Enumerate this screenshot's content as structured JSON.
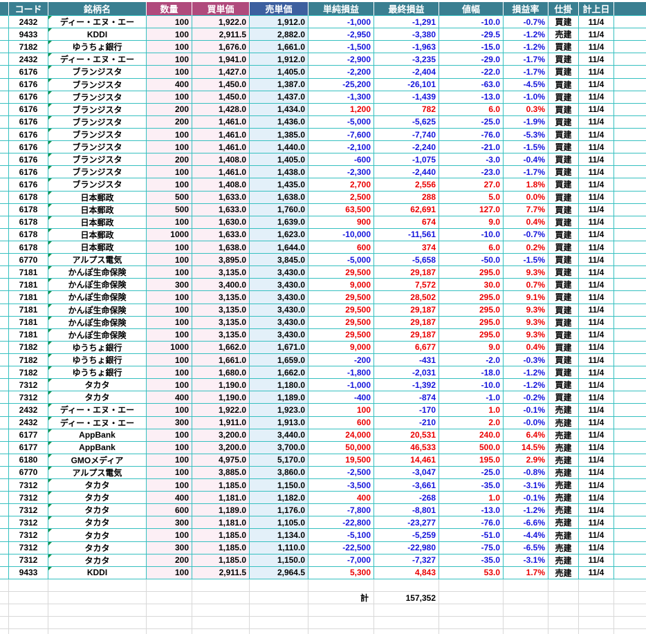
{
  "table": {
    "columns": [
      {
        "key": "spacer-left",
        "label": "",
        "header_color": "header_teal"
      },
      {
        "key": "code",
        "label": "コード",
        "header_color": "header_teal"
      },
      {
        "key": "name",
        "label": "銘柄名",
        "header_color": "header_teal"
      },
      {
        "key": "qty",
        "label": "数量",
        "header_color": "header_magenta",
        "fill": "fill_pink"
      },
      {
        "key": "buy-price",
        "label": "買単価",
        "header_color": "header_magenta",
        "fill": "fill_pink"
      },
      {
        "key": "sell-price",
        "label": "売単価",
        "header_color": "header_blue",
        "fill": "fill_blue"
      },
      {
        "key": "simple-pl",
        "label": "単純損益",
        "header_color": "header_teal",
        "signed": true
      },
      {
        "key": "final-pl",
        "label": "最終損益",
        "header_color": "header_teal",
        "signed": true
      },
      {
        "key": "price-range",
        "label": "値幅",
        "header_color": "header_teal",
        "signed": true
      },
      {
        "key": "pl-rate",
        "label": "損益率",
        "header_color": "header_teal",
        "signed": true
      },
      {
        "key": "position",
        "label": "仕掛",
        "header_color": "header_teal"
      },
      {
        "key": "entry-date",
        "label": "計上日",
        "header_color": "header_teal"
      },
      {
        "key": "spacer-right",
        "label": "",
        "header_color": "header_teal"
      }
    ],
    "rows": [
      [
        "2432",
        "ディー・エヌ・エー",
        "100",
        "1,922.0",
        "1,912.0",
        "-1,000",
        "-1,291",
        "-10.0",
        "-0.7%",
        "買建",
        "11/4"
      ],
      [
        "9433",
        "KDDI",
        "100",
        "2,911.5",
        "2,882.0",
        "-2,950",
        "-3,380",
        "-29.5",
        "-1.2%",
        "売建",
        "11/4"
      ],
      [
        "7182",
        "ゆうちょ銀行",
        "100",
        "1,676.0",
        "1,661.0",
        "-1,500",
        "-1,963",
        "-15.0",
        "-1.2%",
        "買建",
        "11/4"
      ],
      [
        "2432",
        "ディー・エヌ・エー",
        "100",
        "1,941.0",
        "1,912.0",
        "-2,900",
        "-3,235",
        "-29.0",
        "-1.7%",
        "買建",
        "11/4"
      ],
      [
        "6176",
        "ブランジスタ",
        "100",
        "1,427.0",
        "1,405.0",
        "-2,200",
        "-2,404",
        "-22.0",
        "-1.7%",
        "買建",
        "11/4"
      ],
      [
        "6176",
        "ブランジスタ",
        "400",
        "1,450.0",
        "1,387.0",
        "-25,200",
        "-26,101",
        "-63.0",
        "-4.5%",
        "買建",
        "11/4"
      ],
      [
        "6176",
        "ブランジスタ",
        "100",
        "1,450.0",
        "1,437.0",
        "-1,300",
        "-1,439",
        "-13.0",
        "-1.0%",
        "買建",
        "11/4"
      ],
      [
        "6176",
        "ブランジスタ",
        "200",
        "1,428.0",
        "1,434.0",
        "1,200",
        "782",
        "6.0",
        "0.3%",
        "買建",
        "11/4"
      ],
      [
        "6176",
        "ブランジスタ",
        "200",
        "1,461.0",
        "1,436.0",
        "-5,000",
        "-5,625",
        "-25.0",
        "-1.9%",
        "買建",
        "11/4"
      ],
      [
        "6176",
        "ブランジスタ",
        "100",
        "1,461.0",
        "1,385.0",
        "-7,600",
        "-7,740",
        "-76.0",
        "-5.3%",
        "買建",
        "11/4"
      ],
      [
        "6176",
        "ブランジスタ",
        "100",
        "1,461.0",
        "1,440.0",
        "-2,100",
        "-2,240",
        "-21.0",
        "-1.5%",
        "買建",
        "11/4"
      ],
      [
        "6176",
        "ブランジスタ",
        "200",
        "1,408.0",
        "1,405.0",
        "-600",
        "-1,075",
        "-3.0",
        "-0.4%",
        "買建",
        "11/4"
      ],
      [
        "6176",
        "ブランジスタ",
        "100",
        "1,461.0",
        "1,438.0",
        "-2,300",
        "-2,440",
        "-23.0",
        "-1.7%",
        "買建",
        "11/4"
      ],
      [
        "6176",
        "ブランジスタ",
        "100",
        "1,408.0",
        "1,435.0",
        "2,700",
        "2,556",
        "27.0",
        "1.8%",
        "買建",
        "11/4"
      ],
      [
        "6178",
        "日本郵政",
        "500",
        "1,633.0",
        "1,638.0",
        "2,500",
        "288",
        "5.0",
        "0.0%",
        "買建",
        "11/4"
      ],
      [
        "6178",
        "日本郵政",
        "500",
        "1,633.0",
        "1,760.0",
        "63,500",
        "62,691",
        "127.0",
        "7.7%",
        "買建",
        "11/4"
      ],
      [
        "6178",
        "日本郵政",
        "100",
        "1,630.0",
        "1,639.0",
        "900",
        "674",
        "9.0",
        "0.4%",
        "買建",
        "11/4"
      ],
      [
        "6178",
        "日本郵政",
        "1000",
        "1,633.0",
        "1,623.0",
        "-10,000",
        "-11,561",
        "-10.0",
        "-0.7%",
        "買建",
        "11/4"
      ],
      [
        "6178",
        "日本郵政",
        "100",
        "1,638.0",
        "1,644.0",
        "600",
        "374",
        "6.0",
        "0.2%",
        "買建",
        "11/4"
      ],
      [
        "6770",
        "アルプス電気",
        "100",
        "3,895.0",
        "3,845.0",
        "-5,000",
        "-5,658",
        "-50.0",
        "-1.5%",
        "買建",
        "11/4"
      ],
      [
        "7181",
        "かんぽ生命保険",
        "100",
        "3,135.0",
        "3,430.0",
        "29,500",
        "29,187",
        "295.0",
        "9.3%",
        "買建",
        "11/4"
      ],
      [
        "7181",
        "かんぽ生命保険",
        "300",
        "3,400.0",
        "3,430.0",
        "9,000",
        "7,572",
        "30.0",
        "0.7%",
        "買建",
        "11/4"
      ],
      [
        "7181",
        "かんぽ生命保険",
        "100",
        "3,135.0",
        "3,430.0",
        "29,500",
        "28,502",
        "295.0",
        "9.1%",
        "買建",
        "11/4"
      ],
      [
        "7181",
        "かんぽ生命保険",
        "100",
        "3,135.0",
        "3,430.0",
        "29,500",
        "29,187",
        "295.0",
        "9.3%",
        "買建",
        "11/4"
      ],
      [
        "7181",
        "かんぽ生命保険",
        "100",
        "3,135.0",
        "3,430.0",
        "29,500",
        "29,187",
        "295.0",
        "9.3%",
        "買建",
        "11/4"
      ],
      [
        "7181",
        "かんぽ生命保険",
        "100",
        "3,135.0",
        "3,430.0",
        "29,500",
        "29,187",
        "295.0",
        "9.3%",
        "買建",
        "11/4"
      ],
      [
        "7182",
        "ゆうちょ銀行",
        "1000",
        "1,662.0",
        "1,671.0",
        "9,000",
        "6,677",
        "9.0",
        "0.4%",
        "買建",
        "11/4"
      ],
      [
        "7182",
        "ゆうちょ銀行",
        "100",
        "1,661.0",
        "1,659.0",
        "-200",
        "-431",
        "-2.0",
        "-0.3%",
        "買建",
        "11/4"
      ],
      [
        "7182",
        "ゆうちょ銀行",
        "100",
        "1,680.0",
        "1,662.0",
        "-1,800",
        "-2,031",
        "-18.0",
        "-1.2%",
        "買建",
        "11/4"
      ],
      [
        "7312",
        "タカタ",
        "100",
        "1,190.0",
        "1,180.0",
        "-1,000",
        "-1,392",
        "-10.0",
        "-1.2%",
        "買建",
        "11/4"
      ],
      [
        "7312",
        "タカタ",
        "400",
        "1,190.0",
        "1,189.0",
        "-400",
        "-874",
        "-1.0",
        "-0.2%",
        "買建",
        "11/4"
      ],
      [
        "2432",
        "ディー・エヌ・エー",
        "100",
        "1,922.0",
        "1,923.0",
        "100",
        "-170",
        "1.0",
        "-0.1%",
        "売建",
        "11/4"
      ],
      [
        "2432",
        "ディー・エヌ・エー",
        "300",
        "1,911.0",
        "1,913.0",
        "600",
        "-210",
        "2.0",
        "-0.0%",
        "売建",
        "11/4"
      ],
      [
        "6177",
        "AppBank",
        "100",
        "3,200.0",
        "3,440.0",
        "24,000",
        "20,531",
        "240.0",
        "6.4%",
        "売建",
        "11/4"
      ],
      [
        "6177",
        "AppBank",
        "100",
        "3,200.0",
        "3,700.0",
        "50,000",
        "46,533",
        "500.0",
        "14.5%",
        "売建",
        "11/4"
      ],
      [
        "6180",
        "GMOメディア",
        "100",
        "4,975.0",
        "5,170.0",
        "19,500",
        "14,461",
        "195.0",
        "2.9%",
        "売建",
        "11/4"
      ],
      [
        "6770",
        "アルプス電気",
        "100",
        "3,885.0",
        "3,860.0",
        "-2,500",
        "-3,047",
        "-25.0",
        "-0.8%",
        "売建",
        "11/4"
      ],
      [
        "7312",
        "タカタ",
        "100",
        "1,185.0",
        "1,150.0",
        "-3,500",
        "-3,661",
        "-35.0",
        "-3.1%",
        "売建",
        "11/4"
      ],
      [
        "7312",
        "タカタ",
        "400",
        "1,181.0",
        "1,182.0",
        "400",
        "-268",
        "1.0",
        "-0.1%",
        "売建",
        "11/4"
      ],
      [
        "7312",
        "タカタ",
        "600",
        "1,189.0",
        "1,176.0",
        "-7,800",
        "-8,801",
        "-13.0",
        "-1.2%",
        "売建",
        "11/4"
      ],
      [
        "7312",
        "タカタ",
        "300",
        "1,181.0",
        "1,105.0",
        "-22,800",
        "-23,277",
        "-76.0",
        "-6.6%",
        "売建",
        "11/4"
      ],
      [
        "7312",
        "タカタ",
        "100",
        "1,185.0",
        "1,134.0",
        "-5,100",
        "-5,259",
        "-51.0",
        "-4.4%",
        "売建",
        "11/4"
      ],
      [
        "7312",
        "タカタ",
        "300",
        "1,185.0",
        "1,110.0",
        "-22,500",
        "-22,980",
        "-75.0",
        "-6.5%",
        "売建",
        "11/4"
      ],
      [
        "7312",
        "タカタ",
        "200",
        "1,185.0",
        "1,150.0",
        "-7,000",
        "-7,327",
        "-35.0",
        "-3.1%",
        "売建",
        "11/4"
      ],
      [
        "9433",
        "KDDI",
        "100",
        "2,911.5",
        "2,964.5",
        "5,300",
        "4,843",
        "53.0",
        "1.7%",
        "売建",
        "11/4"
      ]
    ],
    "total": {
      "label": "計",
      "value": "157,352"
    }
  },
  "colors": {
    "header_teal": "#3A7F91",
    "header_magenta": "#B04A7C",
    "header_blue": "#3D5F9F",
    "fill_pink": "#FCEFF5",
    "fill_blue": "#E3F0F9",
    "grid_cyan": "#35C0C0",
    "grid_gray": "#D8D8D8",
    "positive_red": "#EA0000",
    "negative_blue": "#1414DC",
    "header_text": "#FFFFFF",
    "text_black": "#000000",
    "marker_green": "#17914A"
  }
}
